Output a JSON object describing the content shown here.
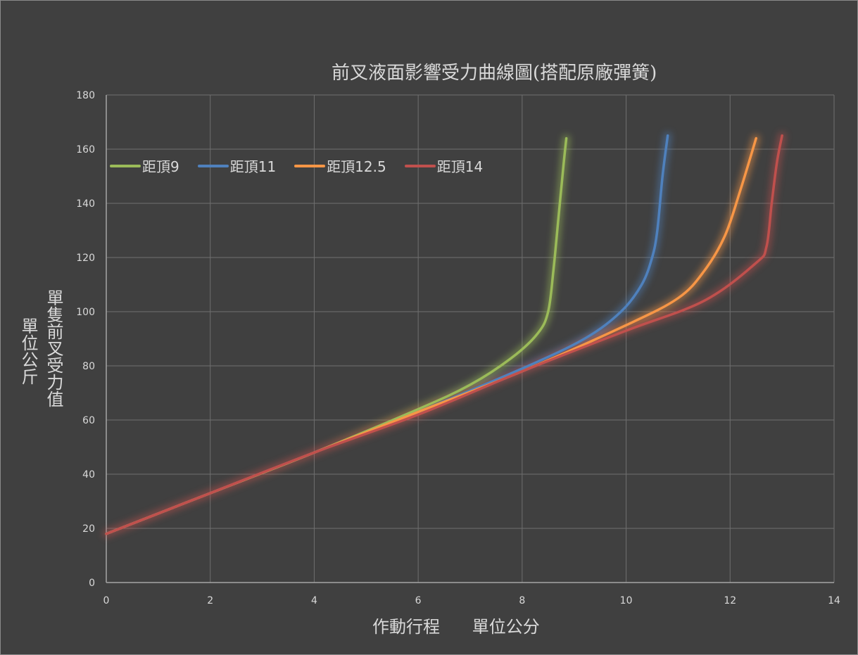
{
  "chart_data": {
    "type": "line",
    "title": "前叉液面影響受力曲線圖(搭配原廠彈簧)",
    "xlabel": "作動行程      單位公分",
    "ylabel": "單隻前叉受力值",
    "ylabel_unit": "單位公斤",
    "xlim": [
      0,
      14
    ],
    "ylim": [
      0,
      180
    ],
    "x_ticks": [
      0,
      2,
      4,
      6,
      8,
      10,
      12,
      14
    ],
    "y_ticks": [
      0,
      20,
      40,
      60,
      80,
      100,
      120,
      140,
      160,
      180
    ],
    "grid": true,
    "legend_position": "top-left",
    "series": [
      {
        "name": "距頂9",
        "color": "#9bbb59",
        "points": [
          [
            0,
            18
          ],
          [
            2,
            33
          ],
          [
            4,
            48
          ],
          [
            6,
            64
          ],
          [
            7,
            73
          ],
          [
            7.8,
            83
          ],
          [
            8.3,
            92
          ],
          [
            8.5,
            100
          ],
          [
            8.6,
            115
          ],
          [
            8.7,
            135
          ],
          [
            8.8,
            155
          ],
          [
            8.85,
            164
          ]
        ]
      },
      {
        "name": "距頂11",
        "color": "#4f81bd",
        "points": [
          [
            0,
            18
          ],
          [
            2,
            33
          ],
          [
            4,
            48
          ],
          [
            6,
            63
          ],
          [
            8,
            79
          ],
          [
            9.2,
            90
          ],
          [
            9.9,
            100
          ],
          [
            10.3,
            110
          ],
          [
            10.5,
            120
          ],
          [
            10.6,
            130
          ],
          [
            10.7,
            150
          ],
          [
            10.8,
            165
          ]
        ]
      },
      {
        "name": "距頂12.5",
        "color": "#f79646",
        "points": [
          [
            0,
            18
          ],
          [
            2,
            33
          ],
          [
            4,
            48
          ],
          [
            6,
            63
          ],
          [
            8,
            78
          ],
          [
            10,
            95
          ],
          [
            11,
            105
          ],
          [
            11.5,
            115
          ],
          [
            11.9,
            128
          ],
          [
            12.2,
            145
          ],
          [
            12.5,
            164
          ]
        ]
      },
      {
        "name": "距頂14",
        "color": "#c0504d",
        "points": [
          [
            0,
            18
          ],
          [
            2,
            33
          ],
          [
            4,
            48
          ],
          [
            6,
            62
          ],
          [
            8,
            78
          ],
          [
            10,
            93
          ],
          [
            11.5,
            104
          ],
          [
            12.5,
            118
          ],
          [
            12.7,
            124
          ],
          [
            12.8,
            140
          ],
          [
            12.9,
            155
          ],
          [
            13,
            165
          ]
        ]
      }
    ]
  }
}
